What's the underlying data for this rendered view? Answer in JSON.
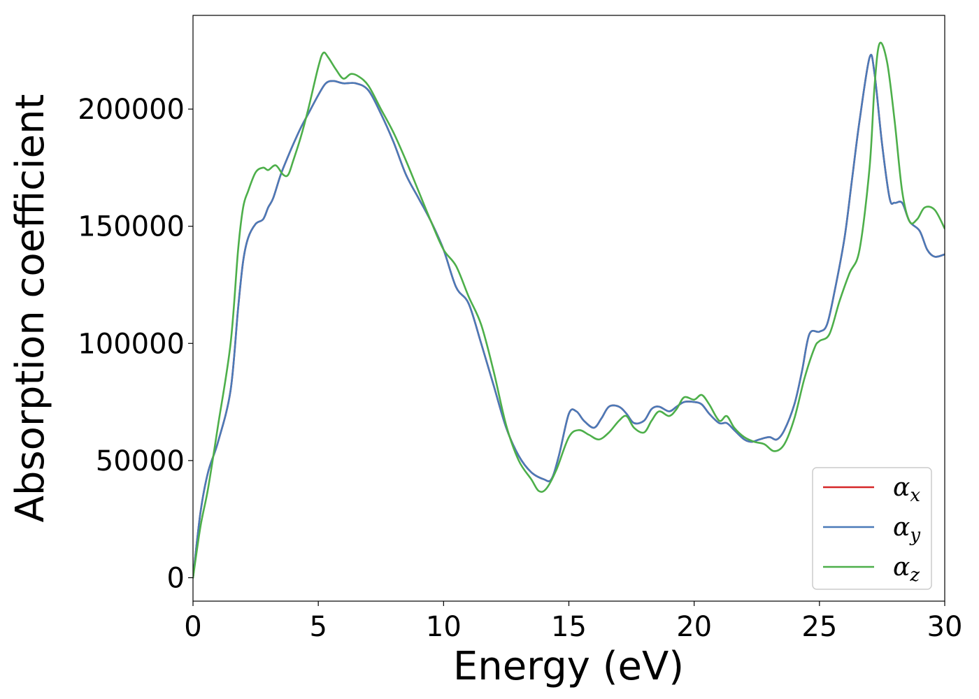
{
  "chart_data": {
    "type": "line",
    "xlabel": "Energy (eV)",
    "ylabel": "Absorption coefficient",
    "xlim": [
      0,
      30
    ],
    "ylim": [
      -10000,
      240000
    ],
    "xticks": [
      0,
      5,
      10,
      15,
      20,
      25,
      30
    ],
    "xtick_labels": [
      "0",
      "5",
      "10",
      "15",
      "20",
      "25",
      "30"
    ],
    "yticks": [
      0,
      50000,
      100000,
      150000,
      200000
    ],
    "ytick_labels": [
      "0",
      "50000",
      "100000",
      "150000",
      "200000"
    ],
    "grid": false,
    "legend": {
      "placement": "bottom-right"
    },
    "series": [
      {
        "name": "α_x",
        "legend_symbol": "α",
        "legend_sub": "x",
        "color": "#d62728",
        "x": [
          0,
          0.3,
          0.6,
          1.0,
          1.5,
          1.8,
          2.0,
          2.2,
          2.5,
          2.8,
          3.0,
          3.2,
          3.5,
          3.8,
          4.0,
          4.3,
          4.6,
          5.0,
          5.3,
          5.6,
          6.0,
          6.5,
          7.0,
          7.5,
          8.0,
          8.5,
          9.0,
          9.5,
          10.0,
          10.5,
          11.0,
          11.5,
          12.0,
          12.5,
          13.0,
          13.5,
          14.0,
          14.3,
          14.6,
          15.0,
          15.3,
          15.6,
          16.0,
          16.3,
          16.6,
          17.0,
          17.3,
          17.6,
          18.0,
          18.3,
          18.6,
          19.0,
          19.3,
          19.6,
          20.0,
          20.3,
          20.6,
          21.0,
          21.3,
          21.6,
          22.0,
          22.3,
          22.6,
          23.0,
          23.3,
          23.6,
          24.0,
          24.3,
          24.6,
          25.0,
          25.3,
          25.6,
          26.0,
          26.3,
          26.6,
          27.0,
          27.2,
          27.5,
          27.8,
          28.0,
          28.3,
          28.6,
          29.0,
          29.3,
          29.6,
          30.0
        ],
        "y": [
          0,
          28000,
          45000,
          58000,
          80000,
          115000,
          135000,
          145000,
          151000,
          153000,
          158000,
          162000,
          172000,
          180000,
          185000,
          192000,
          198000,
          206000,
          211000,
          212000,
          211000,
          211000,
          208000,
          198000,
          186000,
          172000,
          162000,
          152000,
          140000,
          124000,
          117000,
          100000,
          82000,
          64000,
          52000,
          45000,
          42000,
          42000,
          52000,
          70000,
          71000,
          67000,
          64000,
          68000,
          73000,
          73000,
          70000,
          66000,
          67000,
          72000,
          73000,
          71000,
          73000,
          75000,
          75000,
          74000,
          70000,
          66000,
          66000,
          63000,
          59000,
          58000,
          59000,
          60000,
          59000,
          63000,
          74000,
          88000,
          104000,
          105000,
          108000,
          122000,
          145000,
          170000,
          195000,
          222000,
          215000,
          185000,
          162000,
          160000,
          160000,
          152000,
          148000,
          140000,
          137000,
          138000
        ]
      },
      {
        "name": "α_y",
        "legend_symbol": "α",
        "legend_sub": "y",
        "color": "#4a7ab8",
        "x": [
          0,
          0.3,
          0.6,
          1.0,
          1.5,
          1.8,
          2.0,
          2.2,
          2.5,
          2.8,
          3.0,
          3.2,
          3.5,
          3.8,
          4.0,
          4.3,
          4.6,
          5.0,
          5.3,
          5.6,
          6.0,
          6.5,
          7.0,
          7.5,
          8.0,
          8.5,
          9.0,
          9.5,
          10.0,
          10.5,
          11.0,
          11.5,
          12.0,
          12.5,
          13.0,
          13.5,
          14.0,
          14.3,
          14.6,
          15.0,
          15.3,
          15.6,
          16.0,
          16.3,
          16.6,
          17.0,
          17.3,
          17.6,
          18.0,
          18.3,
          18.6,
          19.0,
          19.3,
          19.6,
          20.0,
          20.3,
          20.6,
          21.0,
          21.3,
          21.6,
          22.0,
          22.3,
          22.6,
          23.0,
          23.3,
          23.6,
          24.0,
          24.3,
          24.6,
          25.0,
          25.3,
          25.6,
          26.0,
          26.3,
          26.6,
          27.0,
          27.2,
          27.5,
          27.8,
          28.0,
          28.3,
          28.6,
          29.0,
          29.3,
          29.6,
          30.0
        ],
        "y": [
          0,
          28000,
          45000,
          58000,
          80000,
          115000,
          135000,
          145000,
          151000,
          153000,
          158000,
          162000,
          172000,
          180000,
          185000,
          192000,
          198000,
          206000,
          211000,
          212000,
          211000,
          211000,
          208000,
          198000,
          186000,
          172000,
          162000,
          152000,
          140000,
          124000,
          117000,
          100000,
          82000,
          64000,
          52000,
          45000,
          42000,
          42000,
          52000,
          70000,
          71000,
          67000,
          64000,
          68000,
          73000,
          73000,
          70000,
          66000,
          67000,
          72000,
          73000,
          71000,
          73000,
          75000,
          75000,
          74000,
          70000,
          66000,
          66000,
          63000,
          59000,
          58000,
          59000,
          60000,
          59000,
          63000,
          74000,
          88000,
          104000,
          105000,
          108000,
          122000,
          145000,
          170000,
          195000,
          222000,
          215000,
          185000,
          162000,
          160000,
          160000,
          152000,
          148000,
          140000,
          137000,
          138000
        ]
      },
      {
        "name": "α_z",
        "legend_symbol": "α",
        "legend_sub": "z",
        "color": "#4daf4a",
        "x": [
          0,
          0.3,
          0.6,
          1.0,
          1.5,
          1.8,
          2.0,
          2.2,
          2.5,
          2.8,
          3.0,
          3.3,
          3.6,
          3.8,
          4.0,
          4.3,
          4.6,
          5.0,
          5.2,
          5.4,
          5.7,
          6.0,
          6.3,
          6.6,
          7.0,
          7.5,
          8.0,
          8.5,
          9.0,
          9.5,
          10.0,
          10.5,
          11.0,
          11.5,
          12.0,
          12.5,
          13.0,
          13.5,
          13.8,
          14.1,
          14.5,
          15.0,
          15.4,
          15.8,
          16.2,
          16.6,
          17.0,
          17.3,
          17.6,
          18.0,
          18.3,
          18.6,
          19.0,
          19.3,
          19.6,
          20.0,
          20.3,
          20.6,
          21.0,
          21.3,
          21.6,
          22.0,
          22.4,
          22.8,
          23.2,
          23.6,
          24.0,
          24.4,
          24.8,
          25.0,
          25.4,
          25.8,
          26.2,
          26.6,
          27.0,
          27.2,
          27.4,
          27.7,
          28.0,
          28.3,
          28.6,
          28.9,
          29.2,
          29.6,
          30.0
        ],
        "y": [
          0,
          22000,
          38000,
          65000,
          100000,
          140000,
          158000,
          165000,
          173000,
          175000,
          174000,
          176000,
          172000,
          172000,
          178000,
          188000,
          200000,
          218000,
          224000,
          222000,
          217000,
          213000,
          215000,
          214000,
          210000,
          200000,
          190000,
          178000,
          165000,
          152000,
          140000,
          133000,
          120000,
          108000,
          88000,
          65000,
          50000,
          42000,
          37000,
          38000,
          46000,
          60000,
          63000,
          61000,
          59000,
          62000,
          67000,
          69000,
          64000,
          62000,
          67000,
          71000,
          69000,
          72000,
          77000,
          76000,
          78000,
          74000,
          67000,
          69000,
          64000,
          60000,
          58000,
          57000,
          54000,
          57000,
          68000,
          85000,
          98000,
          101000,
          104000,
          118000,
          130000,
          140000,
          175000,
          210000,
          228000,
          220000,
          195000,
          165000,
          152000,
          153000,
          158000,
          157000,
          149000
        ]
      }
    ]
  }
}
